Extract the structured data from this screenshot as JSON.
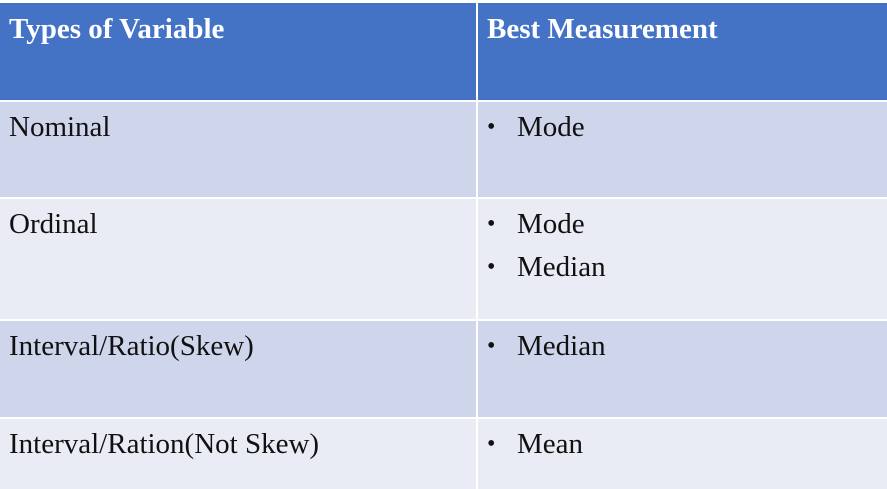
{
  "table": {
    "headers": [
      "Types of Variable",
      "Best Measurement"
    ],
    "header_color": "#4472c4",
    "row_colors": [
      "#cfd5ea",
      "#e9ebf5"
    ],
    "rows": [
      {
        "type": "Nominal",
        "measures": [
          "Mode"
        ]
      },
      {
        "type": "Ordinal",
        "measures": [
          "Mode",
          "Median"
        ]
      },
      {
        "type": "Interval/Ratio(Skew)",
        "measures": [
          "Median"
        ]
      },
      {
        "type": "Interval/Ration(Not Skew)",
        "measures": [
          "Mean"
        ]
      }
    ]
  }
}
